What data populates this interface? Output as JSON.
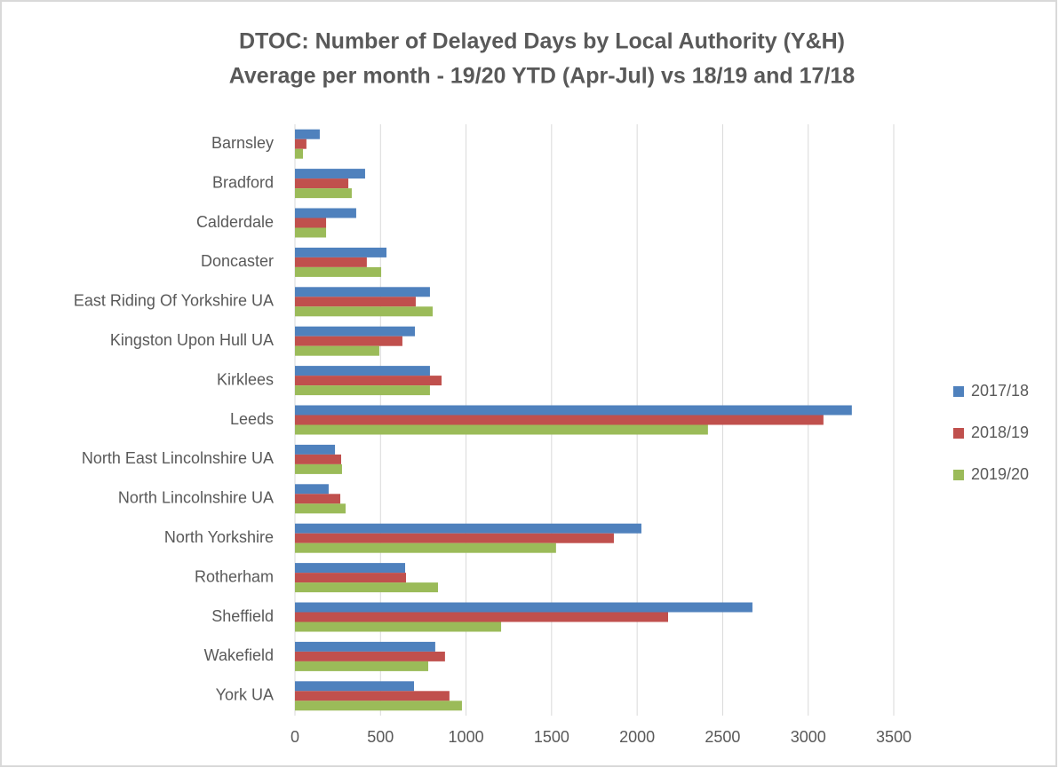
{
  "chart_data": {
    "type": "hbar",
    "title": "DTOC: Number of Delayed Days by Local Authority (Y&H)",
    "subtitle": "Average per month - 19/20 YTD (Apr-Jul) vs 18/19 and 17/18",
    "categories": [
      "Barnsley",
      "Bradford",
      "Calderdale",
      "Doncaster",
      "East Riding Of Yorkshire UA",
      "Kingston Upon Hull UA",
      "Kirklees",
      "Leeds",
      "North East Lincolnshire UA",
      "North Lincolnshire UA",
      "North Yorkshire",
      "Rotherham",
      "Sheffield",
      "Wakefield",
      "York UA"
    ],
    "series": [
      {
        "name": "2017/18",
        "color": "#4f81bd",
        "values": [
          145,
          410,
          358,
          535,
          789,
          701,
          789,
          3255,
          234,
          197,
          2025,
          644,
          2674,
          820,
          696
        ]
      },
      {
        "name": "2018/19",
        "color": "#c0504d",
        "values": [
          67,
          312,
          182,
          420,
          706,
          628,
          857,
          3089,
          270,
          265,
          1864,
          649,
          2181,
          877,
          903
        ]
      },
      {
        "name": "2019/20",
        "color": "#9bbb59",
        "values": [
          47,
          332,
          182,
          504,
          805,
          493,
          789,
          2414,
          275,
          296,
          1526,
          836,
          1205,
          779,
          976
        ]
      }
    ],
    "xlim": [
      0,
      3500
    ],
    "xticks": [
      0,
      500,
      1000,
      1500,
      2000,
      2500,
      3000,
      3500
    ],
    "grid": true,
    "legend": "right"
  }
}
